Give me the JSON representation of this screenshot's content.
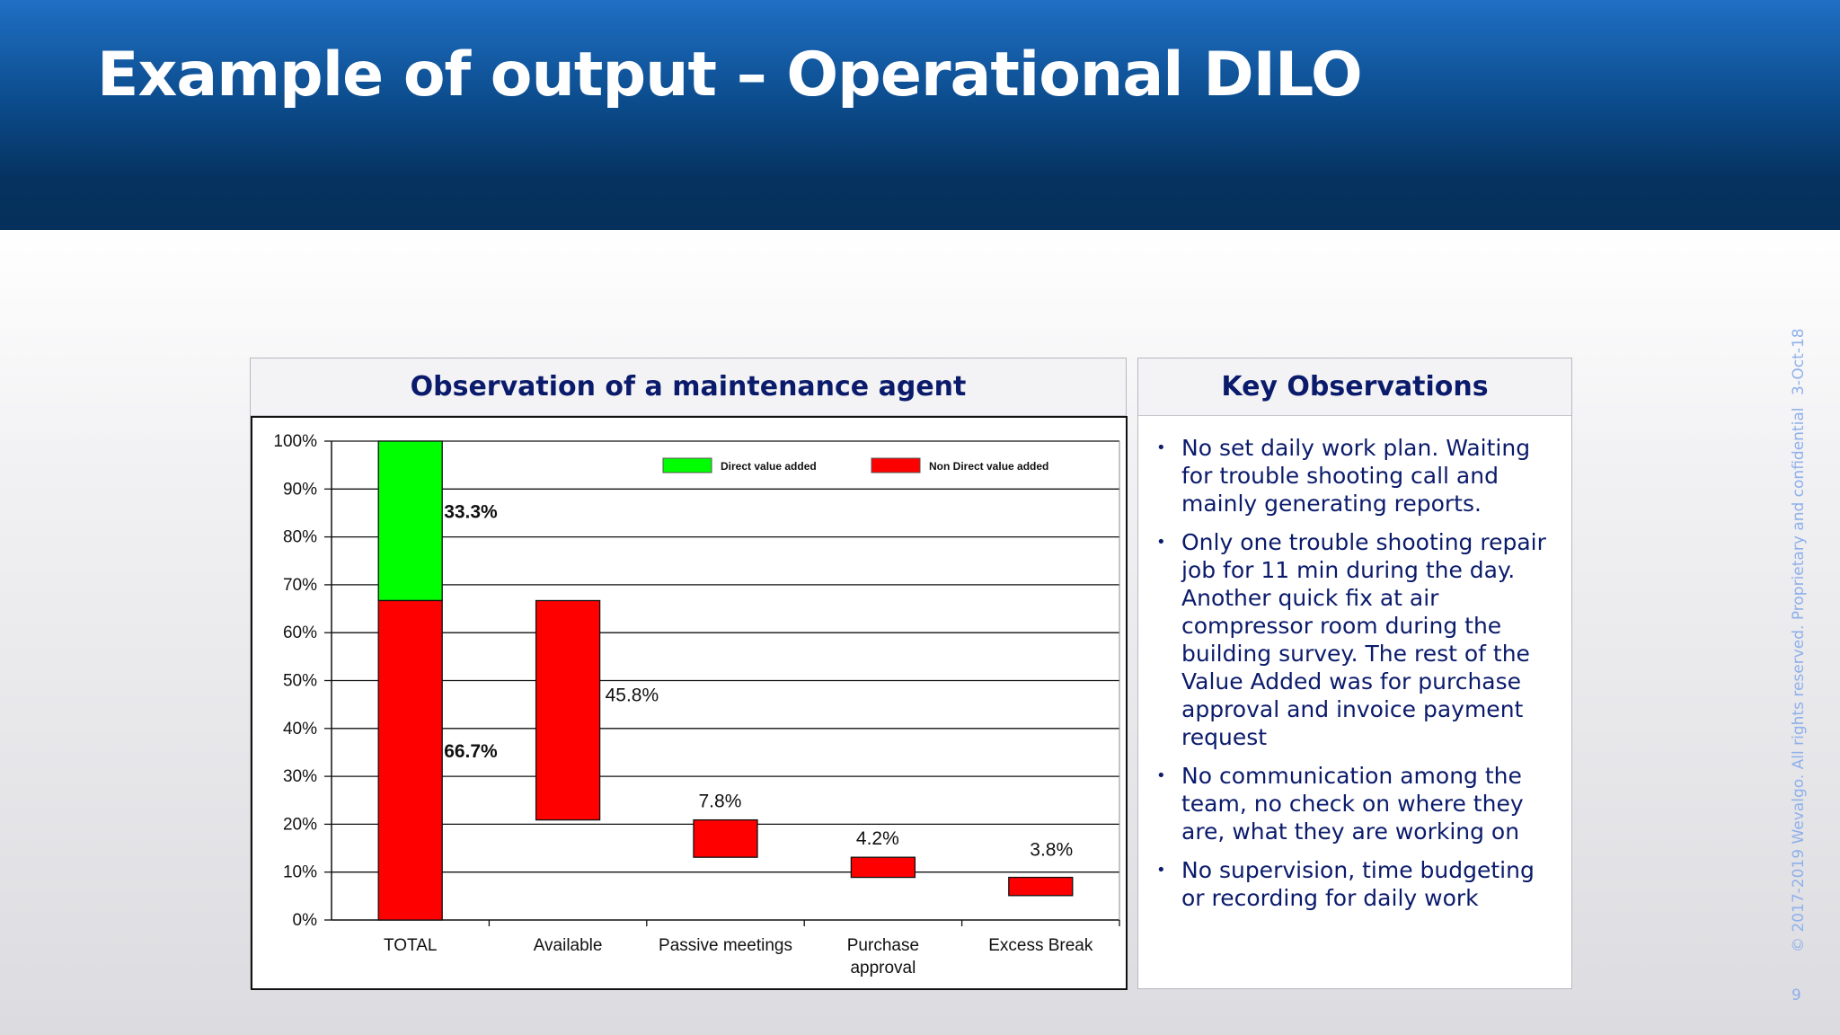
{
  "header": {
    "title": "Example of output – Operational DILO"
  },
  "chart_panel": {
    "title": "Observation of a maintenance agent"
  },
  "key_panel": {
    "title": "Key Observations",
    "items": [
      "No set daily work plan. Waiting for trouble shooting call and  mainly generating reports.",
      "Only one trouble shooting repair job for 11 min during the day. Another quick fix at air compressor room during the building survey. The rest of the Value Added was for purchase approval and invoice payment request",
      "No communication among the team, no check on where they are, what they are working on",
      "No supervision, time budgeting or recording for daily work"
    ]
  },
  "footer": {
    "copyright": "© 2017-2019 Wevalgo.  All rights reserved. Proprietary and confidential",
    "date": "3-Oct-18",
    "page": "9"
  },
  "chart_data": {
    "type": "waterfall (stacked bar)",
    "title": "Observation of a maintenance agent",
    "categories": [
      "TOTAL",
      "Available",
      "Passive meetings",
      "Purchase\napproval",
      "Excess Break"
    ],
    "ylim": [
      0,
      100
    ],
    "yticks": [
      "0%",
      "10%",
      "20%",
      "30%",
      "40%",
      "50%",
      "60%",
      "70%",
      "80%",
      "90%",
      "100%"
    ],
    "grid": true,
    "legend_position": "top",
    "series": [
      {
        "name": "Direct value added",
        "color": "#00ff00",
        "bars": [
          {
            "category": "TOTAL",
            "from": 66.7,
            "to": 100,
            "label": "33.3%"
          }
        ]
      },
      {
        "name": "Non Direct value added",
        "color": "#ff0000",
        "bars": [
          {
            "category": "TOTAL",
            "from": 0,
            "to": 66.7,
            "label": "66.7%"
          },
          {
            "category": "Available",
            "from": 20.9,
            "to": 66.7,
            "label": "45.8%"
          },
          {
            "category": "Passive meetings",
            "from": 13.1,
            "to": 20.9,
            "label": "7.8%"
          },
          {
            "category": "Purchase\napproval",
            "from": 8.9,
            "to": 13.1,
            "label": "4.2%"
          },
          {
            "category": "Excess Break",
            "from": 5.1,
            "to": 8.9,
            "label": "3.8%"
          }
        ]
      }
    ]
  }
}
